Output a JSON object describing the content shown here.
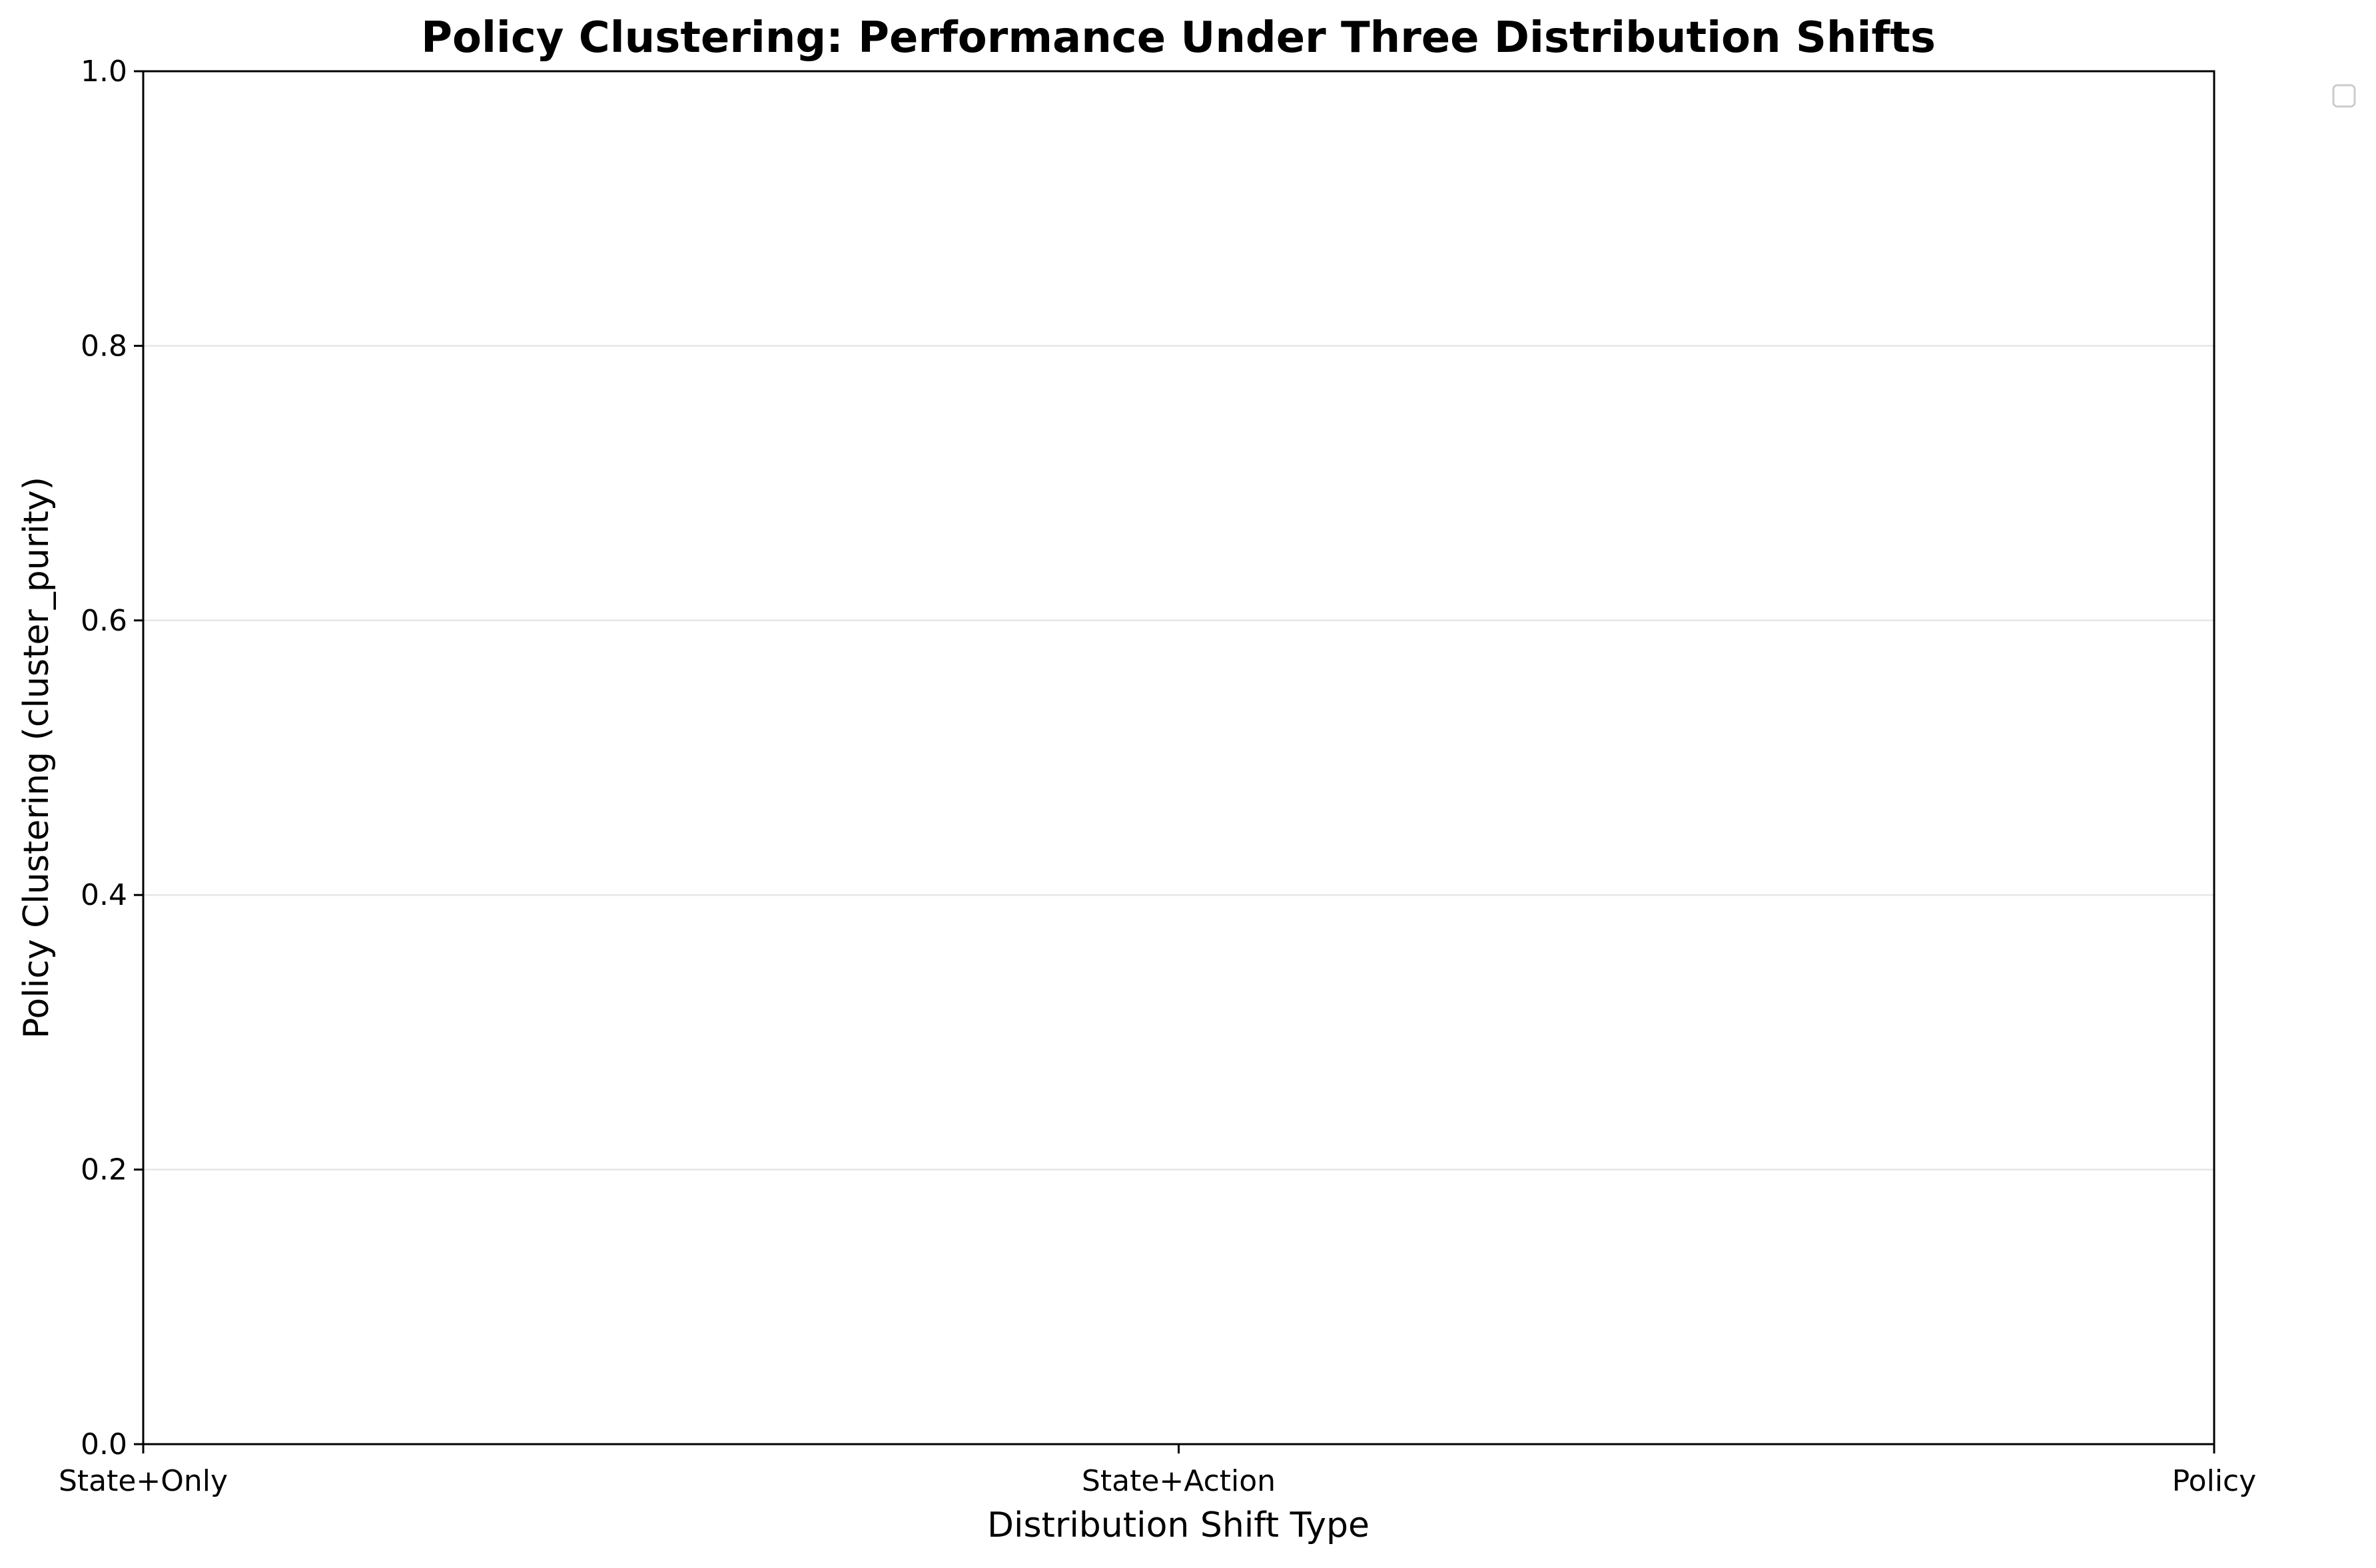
{
  "chart_data": {
    "type": "line",
    "title": "Policy Clustering: Performance Under Three Distribution Shifts",
    "xlabel": "Distribution Shift Type",
    "ylabel": "Policy Clustering (cluster_purity)",
    "categories": [
      "State+Only",
      "State+Action",
      "Policy"
    ],
    "series": [],
    "ylim": [
      0.0,
      1.0
    ],
    "yticks": [
      "0.0",
      "0.2",
      "0.4",
      "0.6",
      "0.8",
      "1.0"
    ],
    "grid": "horizontal",
    "legend": "outside-top-right (empty)"
  }
}
